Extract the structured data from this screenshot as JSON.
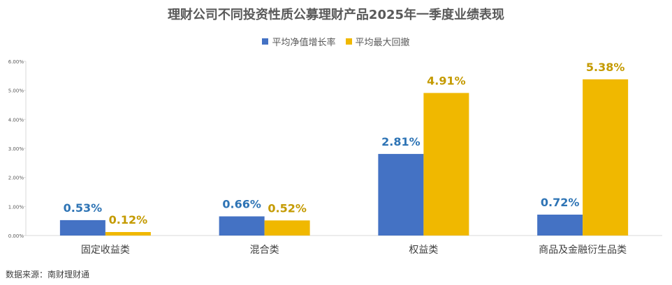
{
  "colors": {
    "nav_growth": "#4472C4",
    "max_drawdown": "#F0B800",
    "nav_label": "#2E74B5",
    "drawdown_label": "#C49A00"
  },
  "chart_data": {
    "type": "bar",
    "title": "理财公司不同投资性质公募理财产品2025年一季度业绩表现",
    "categories": [
      "固定收益类",
      "混合类",
      "权益类",
      "商品及金融衍生品类"
    ],
    "series": [
      {
        "name": "平均净值增长率",
        "values": [
          0.53,
          0.66,
          2.81,
          0.72
        ],
        "labels": [
          "0.53%",
          "0.66%",
          "2.81%",
          "0.72%"
        ]
      },
      {
        "name": "平均最大回撤",
        "values": [
          0.12,
          0.52,
          4.91,
          5.38
        ],
        "labels": [
          "0.12%",
          "0.52%",
          "4.91%",
          "5.38%"
        ]
      }
    ],
    "ylim": [
      0,
      6
    ],
    "yticks": [
      "0.00%",
      "1.00%",
      "2.00%",
      "3.00%",
      "4.00%",
      "5.00%",
      "6.00%"
    ],
    "legend": "top-center",
    "grid": false
  },
  "source": "数据来源：南财理财通"
}
